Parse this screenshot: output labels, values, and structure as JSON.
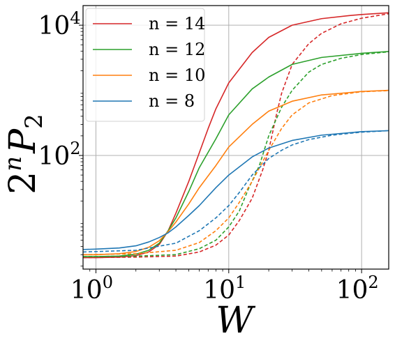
{
  "chart_data": {
    "type": "line",
    "xscale": "log",
    "yscale": "log",
    "xlim": [
      0.8,
      160
    ],
    "ylim": [
      1.8,
      20000
    ],
    "xlabel": "W",
    "ylabel": "2^n P_2",
    "grid": true,
    "legend": {
      "placement": "top-left",
      "entries": [
        "n = 14",
        "n = 12",
        "n = 10",
        "n = 8"
      ]
    },
    "x_ticks": [
      {
        "value": 1,
        "base": "10",
        "exp": "0"
      },
      {
        "value": 10,
        "base": "10",
        "exp": "1"
      },
      {
        "value": 100,
        "base": "10",
        "exp": "2"
      }
    ],
    "y_ticks": [
      {
        "value": 100,
        "base": "10",
        "exp": "2"
      },
      {
        "value": 10000,
        "base": "10",
        "exp": "4"
      }
    ],
    "series": [
      {
        "name": "n = 14",
        "color": "#d62728",
        "style": "solid",
        "points": [
          [
            0.8,
            2.7
          ],
          [
            1,
            2.7
          ],
          [
            1.5,
            2.75
          ],
          [
            2,
            2.9
          ],
          [
            2.5,
            3.3
          ],
          [
            3,
            4.3
          ],
          [
            3.5,
            7
          ],
          [
            4,
            13
          ],
          [
            5,
            40
          ],
          [
            6,
            110
          ],
          [
            7,
            260
          ],
          [
            8,
            520
          ],
          [
            10,
            1300
          ],
          [
            15,
            3800
          ],
          [
            20,
            6500
          ],
          [
            30,
            10000
          ],
          [
            50,
            12600
          ],
          [
            80,
            14000
          ],
          [
            100,
            14600
          ],
          [
            160,
            15500
          ]
        ]
      },
      {
        "name": "n = 14",
        "color": "#d62728",
        "style": "dashed",
        "points": [
          [
            0.8,
            2.7
          ],
          [
            2,
            2.75
          ],
          [
            4,
            2.85
          ],
          [
            6,
            3.3
          ],
          [
            8,
            4.2
          ],
          [
            10,
            6
          ],
          [
            12,
            10
          ],
          [
            15,
            22
          ],
          [
            18,
            60
          ],
          [
            20,
            120
          ],
          [
            23,
            450
          ],
          [
            25,
            900
          ],
          [
            30,
            2500
          ],
          [
            40,
            5200
          ],
          [
            50,
            7500
          ],
          [
            70,
            10500
          ],
          [
            100,
            12800
          ],
          [
            160,
            15000
          ]
        ]
      },
      {
        "name": "n = 12",
        "color": "#2ca02c",
        "style": "solid",
        "points": [
          [
            0.8,
            2.8
          ],
          [
            1,
            2.8
          ],
          [
            1.5,
            2.85
          ],
          [
            2,
            3.05
          ],
          [
            2.5,
            3.5
          ],
          [
            3,
            4.5
          ],
          [
            3.5,
            7
          ],
          [
            4,
            11
          ],
          [
            5,
            28
          ],
          [
            6,
            65
          ],
          [
            8,
            180
          ],
          [
            10,
            420
          ],
          [
            15,
            1050
          ],
          [
            20,
            1600
          ],
          [
            30,
            2500
          ],
          [
            50,
            3200
          ],
          [
            100,
            3700
          ],
          [
            160,
            3950
          ]
        ]
      },
      {
        "name": "n = 12",
        "color": "#2ca02c",
        "style": "dashed",
        "points": [
          [
            0.8,
            2.8
          ],
          [
            2,
            2.85
          ],
          [
            4,
            3.0
          ],
          [
            6,
            3.7
          ],
          [
            8,
            5
          ],
          [
            10,
            8
          ],
          [
            12,
            14
          ],
          [
            14,
            30
          ],
          [
            17,
            70
          ],
          [
            20,
            200
          ],
          [
            25,
            550
          ],
          [
            30,
            1000
          ],
          [
            40,
            1900
          ],
          [
            50,
            2500
          ],
          [
            70,
            3100
          ],
          [
            100,
            3550
          ],
          [
            160,
            3900
          ]
        ]
      },
      {
        "name": "n = 10",
        "color": "#ff7f0e",
        "style": "solid",
        "points": [
          [
            0.8,
            3.0
          ],
          [
            1,
            3.0
          ],
          [
            1.5,
            3.1
          ],
          [
            2,
            3.35
          ],
          [
            2.5,
            3.9
          ],
          [
            3,
            4.9
          ],
          [
            3.5,
            6.8
          ],
          [
            4,
            9.5
          ],
          [
            5,
            18
          ],
          [
            6,
            32
          ],
          [
            8,
            70
          ],
          [
            10,
            135
          ],
          [
            15,
            300
          ],
          [
            20,
            480
          ],
          [
            30,
            680
          ],
          [
            50,
            850
          ],
          [
            100,
            960
          ],
          [
            160,
            1000
          ]
        ]
      },
      {
        "name": "n = 10",
        "color": "#ff7f0e",
        "style": "dashed",
        "points": [
          [
            0.8,
            3.0
          ],
          [
            2,
            3.1
          ],
          [
            4,
            3.5
          ],
          [
            6,
            4.6
          ],
          [
            8,
            7
          ],
          [
            10,
            11
          ],
          [
            12,
            19
          ],
          [
            15,
            40
          ],
          [
            20,
            120
          ],
          [
            25,
            260
          ],
          [
            30,
            420
          ],
          [
            40,
            640
          ],
          [
            60,
            830
          ],
          [
            100,
            950
          ],
          [
            160,
            990
          ]
        ]
      },
      {
        "name": "n = 8",
        "color": "#1f77b4",
        "style": "solid",
        "points": [
          [
            0.8,
            3.6
          ],
          [
            1,
            3.65
          ],
          [
            1.5,
            3.8
          ],
          [
            2,
            4.1
          ],
          [
            2.5,
            4.7
          ],
          [
            3,
            5.5
          ],
          [
            3.5,
            6.5
          ],
          [
            4,
            8
          ],
          [
            5,
            12
          ],
          [
            6,
            17
          ],
          [
            8,
            32
          ],
          [
            10,
            50
          ],
          [
            15,
            95
          ],
          [
            20,
            130
          ],
          [
            30,
            170
          ],
          [
            50,
            205
          ],
          [
            100,
            232
          ],
          [
            160,
            240
          ]
        ]
      },
      {
        "name": "n = 8",
        "color": "#1f77b4",
        "style": "dashed",
        "points": [
          [
            0.8,
            3.3
          ],
          [
            2,
            3.5
          ],
          [
            4,
            4.5
          ],
          [
            6,
            7
          ],
          [
            8,
            11
          ],
          [
            10,
            17
          ],
          [
            12,
            27
          ],
          [
            15,
            50
          ],
          [
            20,
            90
          ],
          [
            25,
            120
          ],
          [
            30,
            145
          ],
          [
            40,
            175
          ],
          [
            60,
            205
          ],
          [
            100,
            228
          ],
          [
            160,
            240
          ]
        ]
      }
    ]
  }
}
